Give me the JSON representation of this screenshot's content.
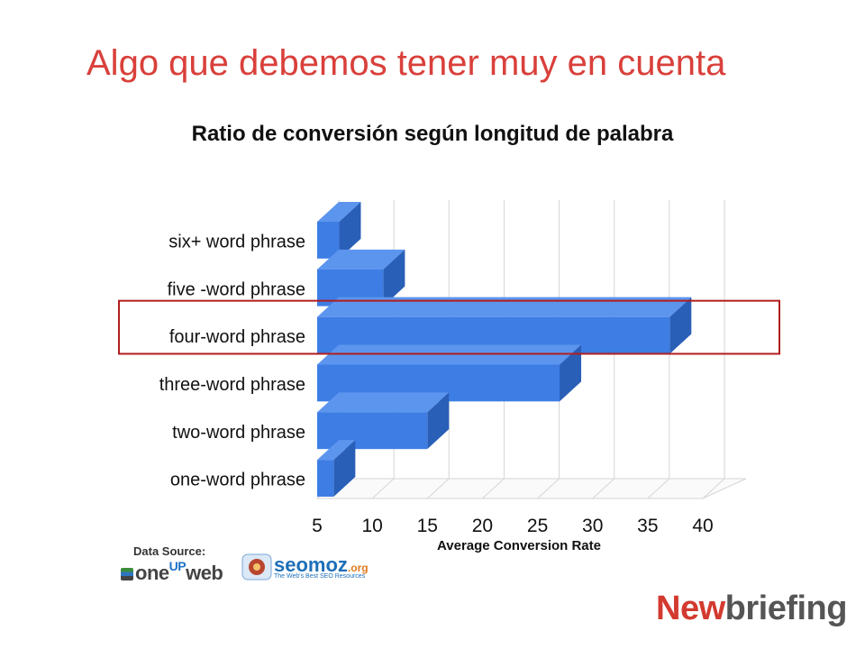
{
  "slide_title": "Algo que debemos tener muy en cuenta",
  "chart_title": "Ratio de conversión según longitud de palabra",
  "colors": {
    "title": "#d9403b",
    "bar_front": "#3d7de4",
    "bar_top": "#5c95ee",
    "bar_side": "#2a5fb8",
    "highlight_box": "#b11e1e",
    "grid": "#d6d6d6"
  },
  "chart_data": {
    "type": "bar",
    "orientation": "horizontal",
    "three_d": true,
    "categories": [
      "six+ word phrase",
      "five -word phrase",
      "four-word phrase",
      "three-word phrase",
      "two-word phrase",
      "one-word phrase"
    ],
    "values": [
      7,
      11,
      37,
      27,
      15,
      6.5
    ],
    "xlabel": "Average Conversion Rate",
    "xlim": [
      5,
      40
    ],
    "xticks": [
      "5",
      "10",
      "15",
      "20",
      "25",
      "30",
      "35",
      "40"
    ],
    "grid": true,
    "highlighted_category": "four-word phrase"
  },
  "footer": {
    "data_source_label": "Data Source:",
    "oneupweb_logo": {
      "one": "one",
      "up": "UP",
      "web": "web"
    },
    "seomoz_logo": {
      "name": "seomoz",
      "domain": ".org",
      "tagline": "The Web's Best SEO Resources"
    },
    "newbriefing_logo": {
      "new": "New",
      "rest": "briefing"
    }
  }
}
